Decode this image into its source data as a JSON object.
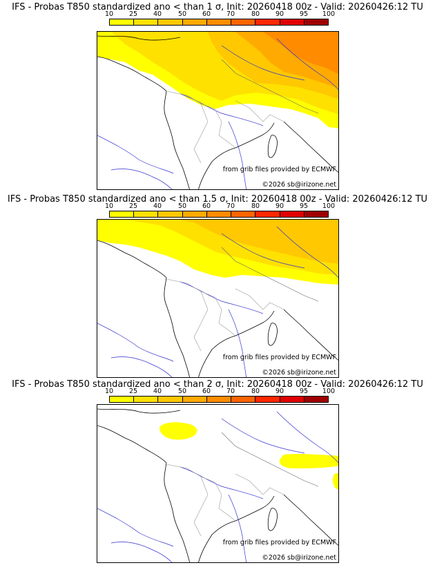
{
  "colorbar": {
    "labels": [
      "10",
      "25",
      "40",
      "50",
      "60",
      "70",
      "80",
      "90",
      "95",
      "100"
    ],
    "colors": [
      "#ffff00",
      "#ffe100",
      "#ffc800",
      "#ffaa00",
      "#ff8c00",
      "#ff6400",
      "#ff2800",
      "#e00000",
      "#a00000",
      "#500000"
    ]
  },
  "panels": [
    {
      "title": "IFS - Probas T850  standardized ano < than 1 σ, Init: 20260418 00z - Valid: 20260426:12 TU",
      "credit_source": "from grib files provided by ECMWF",
      "credit_copyright": "©2026 sb@irizone.net"
    },
    {
      "title": "IFS - Probas T850  standardized ano < than 1.5 σ, Init: 20260418 00z - Valid: 20260426:12 TU",
      "credit_source": "from grib files provided by ECMWF",
      "credit_copyright": "©2026 sb@irizone.net"
    },
    {
      "title": "IFS - Probas T850  standardized ano < than 2 σ, Init: 20260418 00z - Valid: 20260426:12 TU",
      "credit_source": "from grib files provided by ECMWF",
      "credit_copyright": "©2026 sb@irizone.net"
    }
  ]
}
